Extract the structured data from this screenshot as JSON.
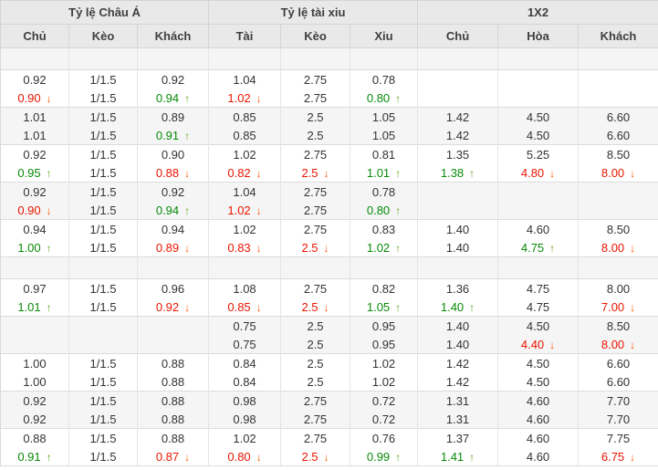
{
  "table": {
    "groups": [
      {
        "label": "Tỷ lệ Châu Á",
        "span": 3
      },
      {
        "label": "Tỷ lệ tài xiu",
        "span": 3
      },
      {
        "label": "1X2",
        "span": 3
      }
    ],
    "columns": [
      "Chủ",
      "Kèo",
      "Khách",
      "Tài",
      "Kèo",
      "Xiu",
      "Chủ",
      "Hòa",
      "Khách"
    ],
    "icons": {
      "up_arrow_glyph": "↑",
      "down_arrow_glyph": "↓"
    },
    "colors": {
      "up_text": "#088a08",
      "up_arrow": "#63a823",
      "down_text": "#ea1500",
      "down_arrow": "#ff5400",
      "header_bg": "#e9e9e9",
      "row_alt_bg": "#f5f5f5",
      "border": "#dcdcdc",
      "text": "#333333"
    },
    "body": [
      {
        "kind": "spacer"
      },
      {
        "kind": "block",
        "shade": "white",
        "rows": [
          [
            "0.92",
            "1/1.5",
            "0.92",
            "1.04",
            "2.75",
            "0.78",
            "",
            "",
            ""
          ],
          [
            {
              "v": "0.90",
              "t": "down"
            },
            "1/1.5",
            {
              "v": "0.94",
              "t": "up"
            },
            {
              "v": "1.02",
              "t": "down"
            },
            "2.75",
            {
              "v": "0.80",
              "t": "up"
            },
            "",
            "",
            ""
          ]
        ]
      },
      {
        "kind": "block",
        "shade": "gray",
        "rows": [
          [
            "1.01",
            "1/1.5",
            "0.89",
            "0.85",
            "2.5",
            "1.05",
            "1.42",
            "4.50",
            "6.60"
          ],
          [
            "1.01",
            "1/1.5",
            {
              "v": "0.91",
              "t": "up"
            },
            "0.85",
            "2.5",
            "1.05",
            "1.42",
            "4.50",
            "6.60"
          ]
        ]
      },
      {
        "kind": "block",
        "shade": "white",
        "rows": [
          [
            "0.92",
            "1/1.5",
            "0.90",
            "1.02",
            "2.75",
            "0.81",
            "1.35",
            "5.25",
            "8.50"
          ],
          [
            {
              "v": "0.95",
              "t": "up"
            },
            "1/1.5",
            {
              "v": "0.88",
              "t": "down"
            },
            {
              "v": "0.82",
              "t": "down"
            },
            {
              "v": "2.5",
              "t": "down"
            },
            {
              "v": "1.01",
              "t": "up"
            },
            {
              "v": "1.38",
              "t": "up"
            },
            {
              "v": "4.80",
              "t": "down"
            },
            {
              "v": "8.00",
              "t": "down"
            }
          ]
        ]
      },
      {
        "kind": "block",
        "shade": "gray",
        "rows": [
          [
            "0.92",
            "1/1.5",
            "0.92",
            "1.04",
            "2.75",
            "0.78",
            "",
            "",
            ""
          ],
          [
            {
              "v": "0.90",
              "t": "down"
            },
            "1/1.5",
            {
              "v": "0.94",
              "t": "up"
            },
            {
              "v": "1.02",
              "t": "down"
            },
            "2.75",
            {
              "v": "0.80",
              "t": "up"
            },
            "",
            "",
            ""
          ]
        ]
      },
      {
        "kind": "block",
        "shade": "white",
        "rows": [
          [
            "0.94",
            "1/1.5",
            "0.94",
            "1.02",
            "2.75",
            "0.83",
            "1.40",
            "4.60",
            "8.50"
          ],
          [
            {
              "v": "1.00",
              "t": "up"
            },
            "1/1.5",
            {
              "v": "0.89",
              "t": "down"
            },
            {
              "v": "0.83",
              "t": "down"
            },
            {
              "v": "2.5",
              "t": "down"
            },
            {
              "v": "1.02",
              "t": "up"
            },
            "1.40",
            {
              "v": "4.75",
              "t": "up"
            },
            {
              "v": "8.00",
              "t": "down"
            }
          ]
        ]
      },
      {
        "kind": "spacer"
      },
      {
        "kind": "block",
        "shade": "white",
        "rows": [
          [
            "0.97",
            "1/1.5",
            "0.96",
            "1.08",
            "2.75",
            "0.82",
            "1.36",
            "4.75",
            "8.00"
          ],
          [
            {
              "v": "1.01",
              "t": "up"
            },
            "1/1.5",
            {
              "v": "0.92",
              "t": "down"
            },
            {
              "v": "0.85",
              "t": "down"
            },
            {
              "v": "2.5",
              "t": "down"
            },
            {
              "v": "1.05",
              "t": "up"
            },
            {
              "v": "1.40",
              "t": "up"
            },
            "4.75",
            {
              "v": "7.00",
              "t": "down"
            }
          ]
        ]
      },
      {
        "kind": "block",
        "shade": "gray",
        "rows": [
          [
            "",
            "",
            "",
            "0.75",
            "2.5",
            "0.95",
            "1.40",
            "4.50",
            "8.50"
          ],
          [
            "",
            "",
            "",
            "0.75",
            "2.5",
            "0.95",
            "1.40",
            {
              "v": "4.40",
              "t": "down"
            },
            {
              "v": "8.00",
              "t": "down"
            }
          ]
        ]
      },
      {
        "kind": "block",
        "shade": "white",
        "rows": [
          [
            "1.00",
            "1/1.5",
            "0.88",
            "0.84",
            "2.5",
            "1.02",
            "1.42",
            "4.50",
            "6.60"
          ],
          [
            "1.00",
            "1/1.5",
            "0.88",
            "0.84",
            "2.5",
            "1.02",
            "1.42",
            "4.50",
            "6.60"
          ]
        ]
      },
      {
        "kind": "block",
        "shade": "gray",
        "rows": [
          [
            "0.92",
            "1/1.5",
            "0.88",
            "0.98",
            "2.75",
            "0.72",
            "1.31",
            "4.60",
            "7.70"
          ],
          [
            "0.92",
            "1/1.5",
            "0.88",
            "0.98",
            "2.75",
            "0.72",
            "1.31",
            "4.60",
            "7.70"
          ]
        ]
      },
      {
        "kind": "block",
        "shade": "white",
        "rows": [
          [
            "0.88",
            "1/1.5",
            "0.88",
            "1.02",
            "2.75",
            "0.76",
            "1.37",
            "4.60",
            "7.75"
          ],
          [
            {
              "v": "0.91",
              "t": "up"
            },
            "1/1.5",
            {
              "v": "0.87",
              "t": "down"
            },
            {
              "v": "0.80",
              "t": "down"
            },
            {
              "v": "2.5",
              "t": "down"
            },
            {
              "v": "0.99",
              "t": "up"
            },
            {
              "v": "1.41",
              "t": "up"
            },
            "4.60",
            {
              "v": "6.75",
              "t": "down"
            }
          ]
        ]
      }
    ]
  }
}
